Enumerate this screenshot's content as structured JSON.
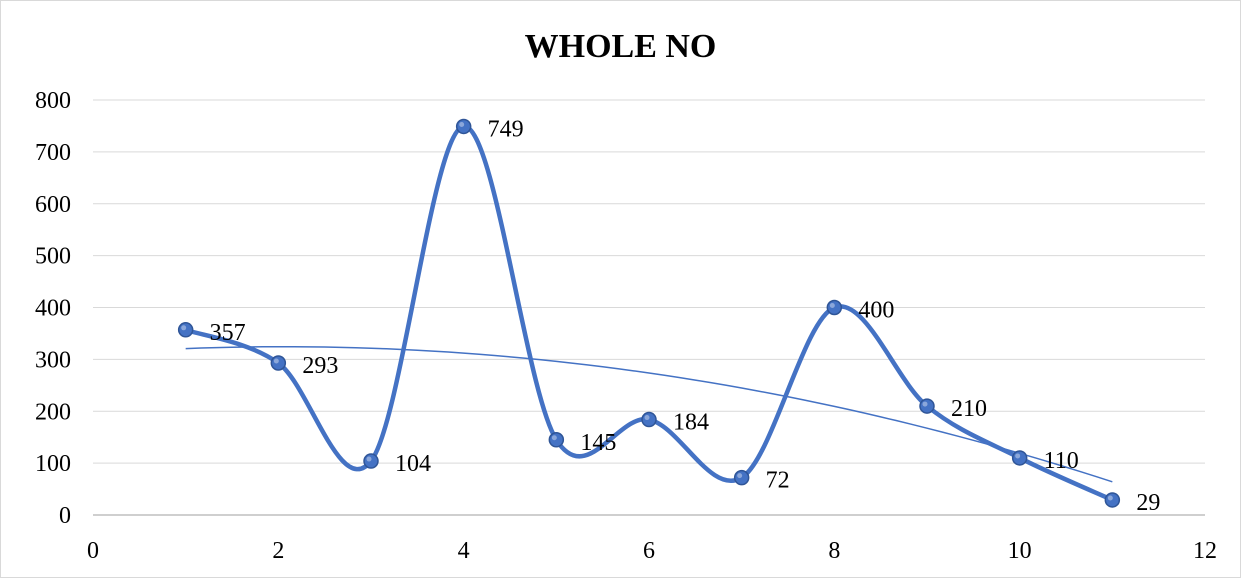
{
  "chart_data": {
    "type": "scatter",
    "title": "WHOLE NO",
    "xlabel": "",
    "ylabel": "",
    "xlim": [
      0,
      12
    ],
    "ylim": [
      0,
      800
    ],
    "x_ticks": [
      0,
      2,
      4,
      6,
      8,
      10,
      12
    ],
    "y_ticks": [
      0,
      100,
      200,
      300,
      400,
      500,
      600,
      700,
      800
    ],
    "grid": true,
    "legend": "none",
    "series": [
      {
        "x": [
          1,
          2,
          3,
          4,
          5,
          6,
          7,
          8,
          9,
          10,
          11
        ],
        "values": [
          357,
          293,
          104,
          749,
          145,
          184,
          72,
          400,
          210,
          110,
          29
        ],
        "line": "smooth",
        "markers": true,
        "data_labels": true
      }
    ],
    "trendline": {
      "type": "polynomial",
      "order": 2,
      "x_range": [
        1,
        11
      ]
    },
    "colors": {
      "series": "#4472c4",
      "marker_fill": "#4472c4",
      "trendline": "#4472c4",
      "grid": "#d9d9d9",
      "axis": "#bfbfbf"
    }
  }
}
